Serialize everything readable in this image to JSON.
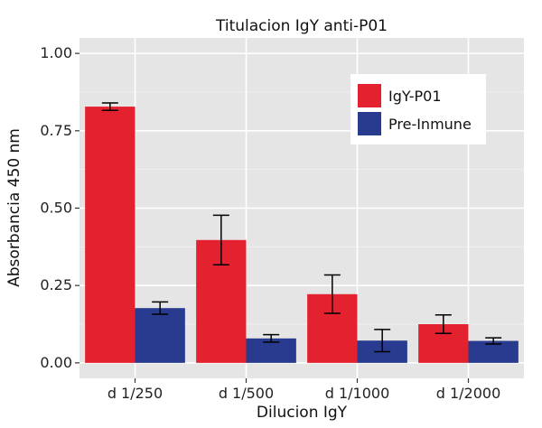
{
  "chart_data": {
    "type": "bar",
    "title": "Titulacion IgY anti-P01",
    "xlabel": "Dilucion IgY",
    "ylabel": "Absorbancia 450 nm",
    "categories": [
      "d 1/250",
      "d 1/500",
      "d 1/1000",
      "d 1/2000"
    ],
    "series": [
      {
        "name": "IgY-P01",
        "color": "#e3212f",
        "values": [
          0.828,
          0.397,
          0.222,
          0.125
        ],
        "errors": [
          0.012,
          0.08,
          0.062,
          0.03
        ]
      },
      {
        "name": "Pre-Inmune",
        "color": "#283b8e",
        "values": [
          0.177,
          0.079,
          0.072,
          0.071
        ],
        "errors": [
          0.02,
          0.012,
          0.036,
          0.01
        ]
      }
    ],
    "ylim": [
      -0.05,
      1.05
    ],
    "yticks": [
      0.0,
      0.25,
      0.5,
      0.75,
      1.0
    ],
    "ytick_labels": [
      "0.00",
      "0.25",
      "0.50",
      "0.75",
      "1.00"
    ],
    "grid": true,
    "legend_position": "top-right"
  },
  "colors": {
    "panel_background": "#e5e5e5",
    "grid": "#ffffff"
  }
}
